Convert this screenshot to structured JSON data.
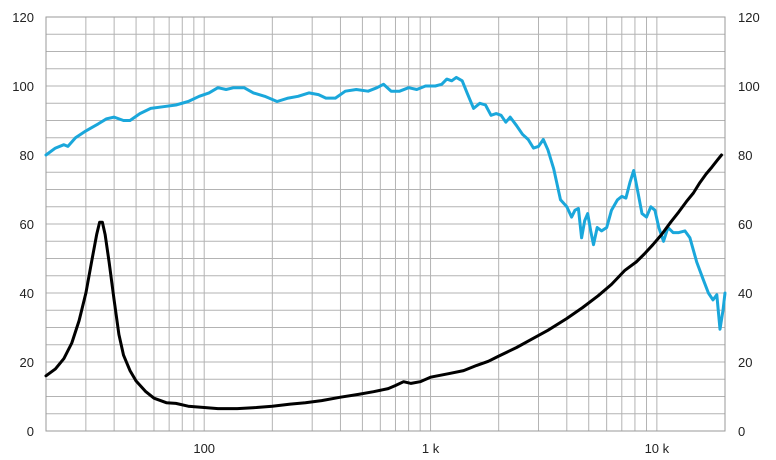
{
  "chart_data": {
    "type": "line",
    "title": "",
    "xlabel": "",
    "ylabel": "",
    "x_scale": "log",
    "xlim": [
      20,
      20000
    ],
    "ylim": [
      0,
      120
    ],
    "grid": true,
    "legend": "none",
    "x_tick_labels": [
      {
        "value": 100,
        "label": "100"
      },
      {
        "value": 1000,
        "label": "1 k"
      },
      {
        "value": 10000,
        "label": "10 k"
      }
    ],
    "y_ticks": [
      0,
      20,
      40,
      60,
      80,
      100,
      120
    ],
    "y_tick_labels": [
      "0",
      "20",
      "40",
      "60",
      "80",
      "100",
      "120"
    ],
    "series": [
      {
        "color": "#1AA7DB",
        "points": [
          [
            20,
            80
          ],
          [
            22,
            82
          ],
          [
            24,
            83
          ],
          [
            25,
            82.5
          ],
          [
            27,
            85
          ],
          [
            30,
            87
          ],
          [
            34,
            89
          ],
          [
            37,
            90.5
          ],
          [
            40,
            91
          ],
          [
            44,
            90
          ],
          [
            47,
            90
          ],
          [
            52,
            92
          ],
          [
            58,
            93.5
          ],
          [
            66,
            94
          ],
          [
            75,
            94.5
          ],
          [
            85,
            95.5
          ],
          [
            95,
            97
          ],
          [
            105,
            98
          ],
          [
            115,
            99.5
          ],
          [
            125,
            99
          ],
          [
            135,
            99.5
          ],
          [
            150,
            99.5
          ],
          [
            165,
            98
          ],
          [
            185,
            97
          ],
          [
            210,
            95.5
          ],
          [
            235,
            96.5
          ],
          [
            260,
            97
          ],
          [
            290,
            98
          ],
          [
            320,
            97.5
          ],
          [
            345,
            96.5
          ],
          [
            380,
            96.5
          ],
          [
            420,
            98.5
          ],
          [
            470,
            99
          ],
          [
            530,
            98.5
          ],
          [
            580,
            99.5
          ],
          [
            620,
            100.5
          ],
          [
            670,
            98.5
          ],
          [
            730,
            98.5
          ],
          [
            800,
            99.5
          ],
          [
            870,
            99
          ],
          [
            950,
            100
          ],
          [
            1050,
            100
          ],
          [
            1120,
            100.5
          ],
          [
            1180,
            102
          ],
          [
            1240,
            101.5
          ],
          [
            1300,
            102.5
          ],
          [
            1380,
            101.5
          ],
          [
            1450,
            98
          ],
          [
            1550,
            93.5
          ],
          [
            1650,
            95
          ],
          [
            1750,
            94.5
          ],
          [
            1850,
            91.5
          ],
          [
            1950,
            92
          ],
          [
            2050,
            91.5
          ],
          [
            2150,
            89.5
          ],
          [
            2250,
            91
          ],
          [
            2400,
            88.5
          ],
          [
            2550,
            86
          ],
          [
            2700,
            84.5
          ],
          [
            2850,
            82
          ],
          [
            3000,
            82.5
          ],
          [
            3150,
            84.5
          ],
          [
            3300,
            81.5
          ],
          [
            3500,
            76
          ],
          [
            3750,
            67
          ],
          [
            4000,
            65
          ],
          [
            4200,
            62
          ],
          [
            4350,
            64
          ],
          [
            4500,
            64.5
          ],
          [
            4650,
            56
          ],
          [
            4800,
            61
          ],
          [
            4950,
            63
          ],
          [
            5100,
            58
          ],
          [
            5250,
            54
          ],
          [
            5450,
            59
          ],
          [
            5700,
            58
          ],
          [
            6000,
            59
          ],
          [
            6300,
            64
          ],
          [
            6700,
            67
          ],
          [
            7000,
            68
          ],
          [
            7300,
            67.5
          ],
          [
            7600,
            72
          ],
          [
            7900,
            75.5
          ],
          [
            8200,
            70
          ],
          [
            8600,
            63
          ],
          [
            9000,
            62
          ],
          [
            9400,
            65
          ],
          [
            9800,
            64
          ],
          [
            10200,
            59
          ],
          [
            10700,
            55
          ],
          [
            11200,
            59
          ],
          [
            11800,
            57.5
          ],
          [
            12500,
            57.5
          ],
          [
            13300,
            58
          ],
          [
            14000,
            56
          ],
          [
            15000,
            49
          ],
          [
            16000,
            44
          ],
          [
            16900,
            40
          ],
          [
            17700,
            38
          ],
          [
            18400,
            39.5
          ],
          [
            19000,
            29.5
          ],
          [
            19600,
            35
          ],
          [
            20000,
            40
          ]
        ]
      },
      {
        "color": "#000000",
        "points": [
          [
            20,
            16
          ],
          [
            22,
            18
          ],
          [
            24,
            21
          ],
          [
            26,
            25.5
          ],
          [
            28,
            32
          ],
          [
            30,
            40
          ],
          [
            32,
            50
          ],
          [
            33.5,
            57
          ],
          [
            34.5,
            60.5
          ],
          [
            35.5,
            60.5
          ],
          [
            36.5,
            57
          ],
          [
            38,
            49
          ],
          [
            40,
            38
          ],
          [
            42,
            28
          ],
          [
            44,
            22
          ],
          [
            47,
            17.5
          ],
          [
            50,
            14.5
          ],
          [
            55,
            11.5
          ],
          [
            60,
            9.5
          ],
          [
            68,
            8.2
          ],
          [
            75,
            8
          ],
          [
            85,
            7.2
          ],
          [
            100,
            6.8
          ],
          [
            115,
            6.5
          ],
          [
            140,
            6.5
          ],
          [
            170,
            6.8
          ],
          [
            200,
            7.2
          ],
          [
            240,
            7.8
          ],
          [
            280,
            8.2
          ],
          [
            330,
            8.8
          ],
          [
            400,
            9.8
          ],
          [
            480,
            10.6
          ],
          [
            560,
            11.4
          ],
          [
            650,
            12.3
          ],
          [
            700,
            13.2
          ],
          [
            760,
            14.3
          ],
          [
            820,
            13.8
          ],
          [
            900,
            14.3
          ],
          [
            1000,
            15.6
          ],
          [
            1200,
            16.6
          ],
          [
            1400,
            17.5
          ],
          [
            1600,
            19
          ],
          [
            1800,
            20.2
          ],
          [
            2000,
            21.7
          ],
          [
            2400,
            24.2
          ],
          [
            2800,
            26.6
          ],
          [
            3300,
            29.2
          ],
          [
            4000,
            32.6
          ],
          [
            4700,
            35.8
          ],
          [
            5500,
            39.2
          ],
          [
            6300,
            42.5
          ],
          [
            7200,
            46.5
          ],
          [
            8100,
            49
          ],
          [
            8800,
            51.3
          ],
          [
            9600,
            54
          ],
          [
            10500,
            57
          ],
          [
            11500,
            60.5
          ],
          [
            12500,
            63.5
          ],
          [
            13500,
            66.5
          ],
          [
            14500,
            69
          ],
          [
            15500,
            72
          ],
          [
            16500,
            74.5
          ],
          [
            17500,
            76.5
          ],
          [
            18500,
            78.5
          ],
          [
            19300,
            80
          ]
        ]
      }
    ]
  }
}
